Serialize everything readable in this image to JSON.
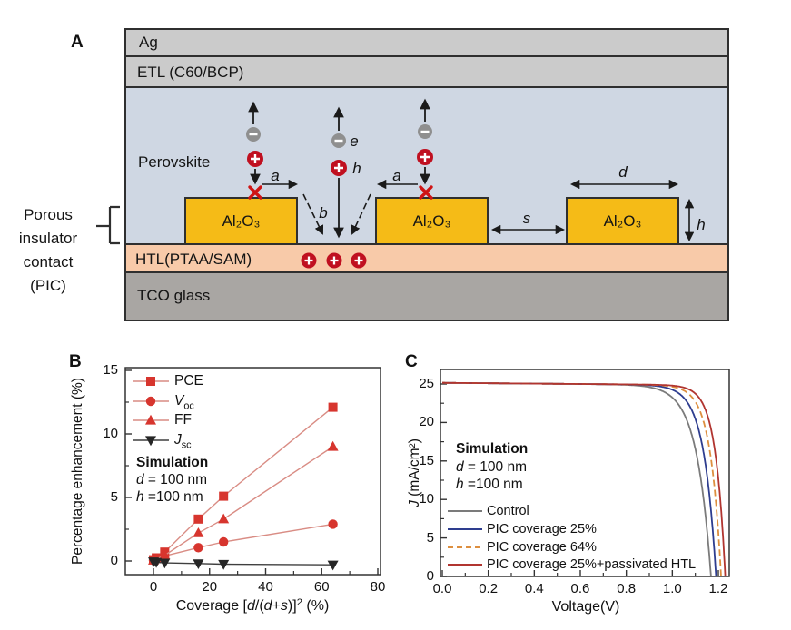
{
  "panelA": {
    "label": "A",
    "layers": {
      "ag": "Ag",
      "etl": "ETL (C60/BCP)",
      "perovskite": "Perovskite",
      "htl": "HTL(PTAA/SAM)",
      "tco": "TCO glass"
    },
    "block_label": "Al₂O₃",
    "side_label": [
      "Porous",
      "insulator",
      "contact",
      "(PIC)"
    ],
    "markers": {
      "e": "e",
      "h": "h",
      "a": "a",
      "b": "b",
      "s": "s",
      "d": "d",
      "height": "h"
    },
    "colors": {
      "electrode_gray": "#cbcbcb",
      "perovskite_blue": "#cfd7e3",
      "al2o3_yellow": "#f5bb17",
      "htl_peach": "#f8caa9",
      "tco_gray": "#a9a6a3",
      "hole_red": "#c01020",
      "electron_gray": "#8f8f8f",
      "x_red": "#cf1414",
      "border_dark": "#2f2f2f"
    }
  },
  "panelB": {
    "label": "B"
  },
  "panelC": {
    "label": "C"
  },
  "chart_data": [
    {
      "id": "B",
      "type": "scatter",
      "title": "",
      "xlabel": "Coverage [d/(d+s)]² (%)",
      "xlabel_parts": [
        {
          "t": "Coverage [",
          "s": "n"
        },
        {
          "t": "d",
          "s": "i"
        },
        {
          "t": "/(",
          "s": "n"
        },
        {
          "t": "d",
          "s": "i"
        },
        {
          "t": "+",
          "s": "n"
        },
        {
          "t": "s",
          "s": "i"
        },
        {
          "t": ")]",
          "s": "n"
        },
        {
          "t": "2",
          "s": "sup"
        },
        {
          "t": " (%)",
          "s": "n"
        }
      ],
      "ylabel": "Percentage enhancement (%)",
      "xlim": [
        -10,
        81
      ],
      "ylim": [
        -1.1,
        15.2
      ],
      "xticks": [
        0,
        20,
        40,
        60,
        80
      ],
      "xtick_labels": [
        "0",
        "20",
        "40",
        "60",
        "80"
      ],
      "xminor": [
        10,
        30,
        50,
        70
      ],
      "yticks": [
        0,
        5,
        10,
        15
      ],
      "ytick_labels": [
        "0",
        "5",
        "10",
        "15"
      ],
      "yminor": [
        2.5,
        7.5,
        12.5
      ],
      "grid": false,
      "legend_position": "upper-left",
      "x": [
        0,
        1,
        4,
        16,
        25,
        64
      ],
      "series": [
        {
          "name": "PCE",
          "label_parts": [
            {
              "t": "PCE",
              "s": "n"
            }
          ],
          "marker": "square",
          "marker_color": "#d7352e",
          "line_color": "#d98c84",
          "values": [
            0.1,
            0.25,
            0.7,
            3.3,
            5.1,
            12.1
          ]
        },
        {
          "name": "Voc",
          "label_parts": [
            {
              "t": "V",
              "s": "i"
            },
            {
              "t": "oc",
              "s": "sub"
            }
          ],
          "marker": "circle",
          "marker_color": "#d7352e",
          "line_color": "#d98c84",
          "values": [
            0.05,
            0.15,
            0.4,
            1.05,
            1.5,
            2.9
          ]
        },
        {
          "name": "FF",
          "label_parts": [
            {
              "t": "FF",
              "s": "n"
            }
          ],
          "marker": "triangle-up",
          "marker_color": "#d7352e",
          "line_color": "#d98c84",
          "values": [
            0.05,
            0.15,
            0.45,
            2.2,
            3.3,
            9.0
          ]
        },
        {
          "name": "Jsc",
          "label_parts": [
            {
              "t": "J",
              "s": "i"
            },
            {
              "t": "sc",
              "s": "sub"
            }
          ],
          "marker": "triangle-down",
          "marker_color": "#262626",
          "line_color": "#3f3f3f",
          "values": [
            -0.05,
            -0.1,
            -0.15,
            -0.2,
            -0.25,
            -0.3
          ]
        }
      ],
      "annotation": [
        [
          {
            "t": "Simulation",
            "s": "b"
          }
        ],
        [
          {
            "t": "d",
            "s": "i"
          },
          {
            "t": " = 100 nm",
            "s": "n"
          }
        ],
        [
          {
            "t": "h",
            "s": "i"
          },
          {
            "t": " =100 nm",
            "s": "n"
          }
        ]
      ]
    },
    {
      "id": "C",
      "type": "line",
      "title": "",
      "xlabel": "Voltage(V)",
      "ylabel": "J (mA/cm²)",
      "ylabel_parts": [
        {
          "t": "J",
          "s": "i"
        },
        {
          "t": " (mA/cm²)",
          "s": "n"
        }
      ],
      "xlim": [
        0,
        1.25
      ],
      "ylim": [
        0,
        26.9
      ],
      "xticks": [
        0,
        0.2,
        0.4,
        0.6,
        0.8,
        1.0,
        1.2
      ],
      "xtick_labels": [
        "0.0",
        "0.2",
        "0.4",
        "0.6",
        "0.8",
        "1.0",
        "1.2"
      ],
      "xminor": [
        0.1,
        0.3,
        0.5,
        0.7,
        0.9,
        1.1
      ],
      "yticks": [
        0,
        5,
        10,
        15,
        20,
        25
      ],
      "ytick_labels": [
        "0",
        "5",
        "10",
        "15",
        "20",
        "25"
      ],
      "yminor": [
        2.5,
        7.5,
        12.5,
        17.5,
        22.5
      ],
      "grid": false,
      "legend_position": "lower-left",
      "jsc": 25.15,
      "series": [
        {
          "name": "Control",
          "color": "#7b7b7b",
          "dash": false,
          "voc": 1.168,
          "knee": 0.062
        },
        {
          "name": "PIC coverage 25%",
          "color": "#2e3d8f",
          "dash": false,
          "voc": 1.19,
          "knee": 0.052
        },
        {
          "name": "PIC coverage 64%",
          "color": "#dd8f3f",
          "dash": true,
          "voc": 1.212,
          "knee": 0.046
        },
        {
          "name": "PIC coverage 25%+passivated HTL",
          "color": "#b13530",
          "dash": false,
          "voc": 1.23,
          "knee": 0.042
        }
      ],
      "annotation": [
        [
          {
            "t": "Simulation",
            "s": "b"
          }
        ],
        [
          {
            "t": "d",
            "s": "i"
          },
          {
            "t": " = 100 nm",
            "s": "n"
          }
        ],
        [
          {
            "t": "h",
            "s": "i"
          },
          {
            "t": " =100 nm",
            "s": "n"
          }
        ]
      ]
    }
  ]
}
